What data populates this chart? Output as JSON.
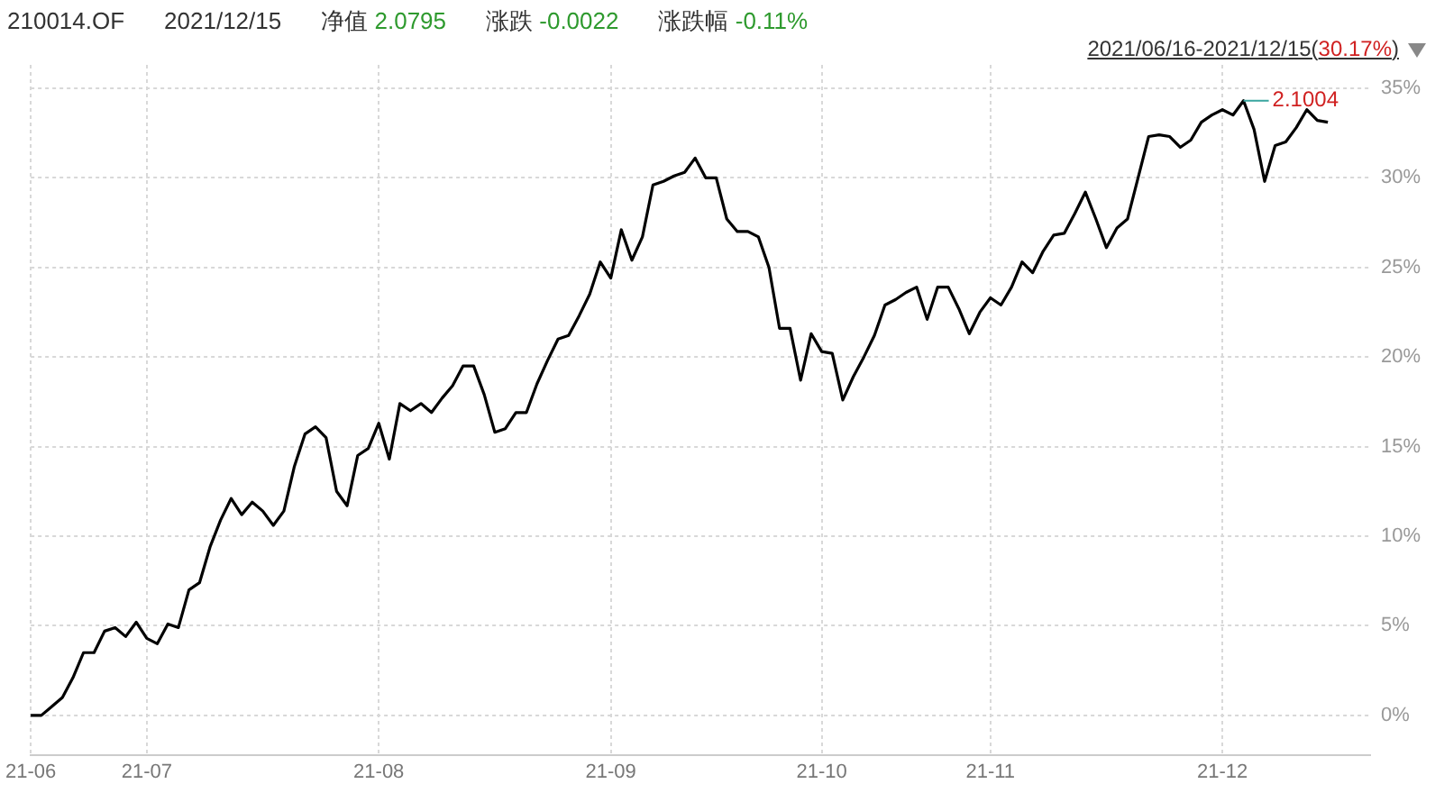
{
  "chart_data": {
    "type": "line",
    "title": "210014.OF",
    "annotations": [
      "2021/12/15",
      "净值 2.0795",
      "涨跌 -0.0022",
      "涨跌幅 -0.11%",
      "2021/06/16-2021/12/15(30.17%)",
      {
        "text": "2.1004",
        "y": 34.3
      }
    ],
    "categories": [
      "21-06",
      null,
      null,
      null,
      null,
      null,
      null,
      null,
      null,
      null,
      null,
      "21-07",
      null,
      null,
      null,
      null,
      null,
      null,
      null,
      null,
      null,
      null,
      null,
      null,
      null,
      null,
      null,
      null,
      null,
      null,
      null,
      null,
      null,
      "21-08",
      null,
      null,
      null,
      null,
      null,
      null,
      null,
      null,
      null,
      null,
      null,
      null,
      null,
      null,
      null,
      null,
      null,
      null,
      null,
      null,
      null,
      "21-09",
      null,
      null,
      null,
      null,
      null,
      null,
      null,
      null,
      null,
      null,
      null,
      null,
      null,
      null,
      null,
      null,
      null,
      null,
      null,
      "21-10",
      null,
      null,
      null,
      null,
      null,
      null,
      null,
      null,
      null,
      null,
      null,
      null,
      null,
      null,
      null,
      "21-11",
      null,
      null,
      null,
      null,
      null,
      null,
      null,
      null,
      null,
      null,
      null,
      null,
      null,
      null,
      null,
      null,
      null,
      null,
      null,
      null,
      null,
      "21-12",
      null,
      null,
      null,
      null,
      null,
      null,
      null,
      null,
      null,
      null,
      null,
      null,
      null,
      null
    ],
    "series": [
      {
        "color": "#000000",
        "values": [
          0,
          0,
          0.5,
          1.0,
          2.1,
          3.5,
          3.5,
          4.7,
          4.9,
          4.4,
          5.2,
          4.3,
          4.0,
          5.1,
          4.9,
          7.0,
          7.4,
          9.4,
          10.9,
          12.1,
          11.2,
          11.9,
          11.4,
          10.6,
          11.4,
          13.9,
          15.7,
          16.1,
          15.5,
          12.5,
          11.7,
          14.5,
          14.9,
          16.3,
          14.3,
          17.4,
          17.0,
          17.4,
          16.9,
          17.7,
          18.4,
          19.5,
          19.5,
          17.9,
          15.8,
          16.0,
          16.9,
          16.9,
          18.5,
          19.8,
          21.0,
          21.2,
          22.3,
          23.5,
          25.3,
          24.4,
          27.1,
          25.4,
          26.7,
          29.6,
          29.8,
          30.1,
          30.3,
          31.1,
          30.0,
          30.0,
          27.7,
          27.0,
          27.0,
          26.7,
          25.0,
          21.6,
          21.6,
          18.7,
          21.3,
          20.3,
          20.2,
          17.6,
          18.9,
          20.0,
          21.2,
          22.9,
          23.2,
          23.6,
          23.9,
          22.1,
          23.9,
          23.9,
          22.7,
          21.3,
          22.5,
          23.3,
          22.9,
          23.9,
          25.3,
          24.7,
          25.9,
          26.8,
          26.9,
          28.0,
          29.2,
          27.7,
          26.1,
          27.2,
          27.7,
          30.0,
          32.3,
          32.4,
          32.3,
          31.7,
          32.1,
          33.1,
          33.5,
          33.8,
          33.5,
          34.3,
          32.7,
          29.8,
          31.8,
          32.0,
          32.8,
          33.8,
          33.2,
          33.1,
          null,
          null,
          null,
          null
        ]
      }
    ],
    "ylim": [
      -2.2,
      36.3
    ],
    "yticks": [
      {
        "value": 0,
        "label": "0%"
      },
      {
        "value": 5,
        "label": "5%"
      },
      {
        "value": 10,
        "label": "10%"
      },
      {
        "value": 15,
        "label": "15%"
      },
      {
        "value": 20,
        "label": "20%"
      },
      {
        "value": 25,
        "label": "25%"
      },
      {
        "value": 30,
        "label": "30%"
      },
      {
        "value": 35,
        "label": "35%"
      }
    ],
    "grid": true,
    "legend": false,
    "marker": "none",
    "line_style": "solid"
  }
}
